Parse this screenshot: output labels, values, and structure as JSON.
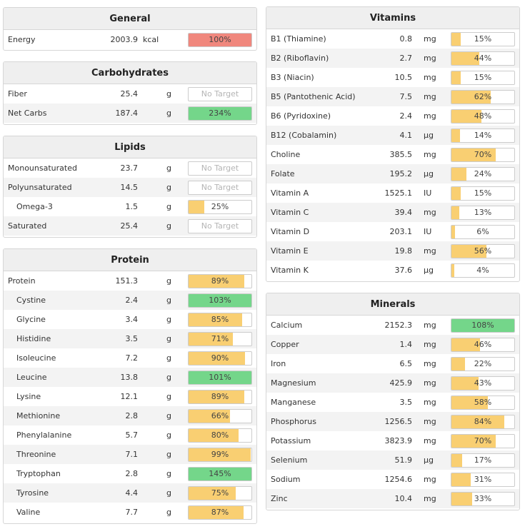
{
  "colors": {
    "orange": "#f9cf72",
    "green": "#74d68a",
    "red": "#f0877d"
  },
  "general": {
    "title": "General",
    "rows": [
      {
        "name": "Energy",
        "amount": "2003.9",
        "unit": "kcal",
        "percent": "100%",
        "pct": 100,
        "color": "#f0877d"
      }
    ]
  },
  "carbs": {
    "title": "Carbohydrates",
    "rows": [
      {
        "name": "Fiber",
        "amount": "25.4",
        "unit": "g",
        "percent": "No Target",
        "pct": 0,
        "color": ""
      },
      {
        "name": "Net Carbs",
        "amount": "187.4",
        "unit": "g",
        "percent": "234%",
        "pct": 100,
        "color": "#74d68a"
      }
    ]
  },
  "lipids": {
    "title": "Lipids",
    "rows": [
      {
        "name": "Monounsaturated",
        "amount": "23.7",
        "unit": "g",
        "percent": "No Target",
        "pct": 0,
        "color": ""
      },
      {
        "name": "Polyunsaturated",
        "amount": "14.5",
        "unit": "g",
        "percent": "No Target",
        "pct": 0,
        "color": ""
      },
      {
        "name": "Omega-3",
        "amount": "1.5",
        "unit": "g",
        "percent": "25%",
        "pct": 25,
        "color": "#f9cf72",
        "sub": true
      },
      {
        "name": "Saturated",
        "amount": "25.4",
        "unit": "g",
        "percent": "No Target",
        "pct": 0,
        "color": ""
      }
    ]
  },
  "protein": {
    "title": "Protein",
    "rows": [
      {
        "name": "Protein",
        "amount": "151.3",
        "unit": "g",
        "percent": "89%",
        "pct": 89,
        "color": "#f9cf72"
      },
      {
        "name": "Cystine",
        "amount": "2.4",
        "unit": "g",
        "percent": "103%",
        "pct": 100,
        "color": "#74d68a",
        "sub": true
      },
      {
        "name": "Glycine",
        "amount": "3.4",
        "unit": "g",
        "percent": "85%",
        "pct": 85,
        "color": "#f9cf72",
        "sub": true
      },
      {
        "name": "Histidine",
        "amount": "3.5",
        "unit": "g",
        "percent": "71%",
        "pct": 71,
        "color": "#f9cf72",
        "sub": true
      },
      {
        "name": "Isoleucine",
        "amount": "7.2",
        "unit": "g",
        "percent": "90%",
        "pct": 90,
        "color": "#f9cf72",
        "sub": true
      },
      {
        "name": "Leucine",
        "amount": "13.8",
        "unit": "g",
        "percent": "101%",
        "pct": 100,
        "color": "#74d68a",
        "sub": true
      },
      {
        "name": "Lysine",
        "amount": "12.1",
        "unit": "g",
        "percent": "89%",
        "pct": 89,
        "color": "#f9cf72",
        "sub": true
      },
      {
        "name": "Methionine",
        "amount": "2.8",
        "unit": "g",
        "percent": "66%",
        "pct": 66,
        "color": "#f9cf72",
        "sub": true
      },
      {
        "name": "Phenylalanine",
        "amount": "5.7",
        "unit": "g",
        "percent": "80%",
        "pct": 80,
        "color": "#f9cf72",
        "sub": true
      },
      {
        "name": "Threonine",
        "amount": "7.1",
        "unit": "g",
        "percent": "99%",
        "pct": 99,
        "color": "#f9cf72",
        "sub": true
      },
      {
        "name": "Tryptophan",
        "amount": "2.8",
        "unit": "g",
        "percent": "145%",
        "pct": 100,
        "color": "#74d68a",
        "sub": true
      },
      {
        "name": "Tyrosine",
        "amount": "4.4",
        "unit": "g",
        "percent": "75%",
        "pct": 75,
        "color": "#f9cf72",
        "sub": true
      },
      {
        "name": "Valine",
        "amount": "7.7",
        "unit": "g",
        "percent": "87%",
        "pct": 87,
        "color": "#f9cf72",
        "sub": true
      }
    ]
  },
  "vitamins": {
    "title": "Vitamins",
    "rows": [
      {
        "name": "B1 (Thiamine)",
        "amount": "0.8",
        "unit": "mg",
        "percent": "15%",
        "pct": 15,
        "color": "#f9cf72"
      },
      {
        "name": "B2 (Riboflavin)",
        "amount": "2.7",
        "unit": "mg",
        "percent": "44%",
        "pct": 44,
        "color": "#f9cf72"
      },
      {
        "name": "B3 (Niacin)",
        "amount": "10.5",
        "unit": "mg",
        "percent": "15%",
        "pct": 15,
        "color": "#f9cf72"
      },
      {
        "name": "B5 (Pantothenic Acid)",
        "amount": "7.5",
        "unit": "mg",
        "percent": "62%",
        "pct": 62,
        "color": "#f9cf72"
      },
      {
        "name": "B6 (Pyridoxine)",
        "amount": "2.4",
        "unit": "mg",
        "percent": "48%",
        "pct": 48,
        "color": "#f9cf72"
      },
      {
        "name": "B12 (Cobalamin)",
        "amount": "4.1",
        "unit": "µg",
        "percent": "14%",
        "pct": 14,
        "color": "#f9cf72"
      },
      {
        "name": "Choline",
        "amount": "385.5",
        "unit": "mg",
        "percent": "70%",
        "pct": 70,
        "color": "#f9cf72"
      },
      {
        "name": "Folate",
        "amount": "195.2",
        "unit": "µg",
        "percent": "24%",
        "pct": 24,
        "color": "#f9cf72"
      },
      {
        "name": "Vitamin A",
        "amount": "1525.1",
        "unit": "IU",
        "percent": "15%",
        "pct": 15,
        "color": "#f9cf72"
      },
      {
        "name": "Vitamin C",
        "amount": "39.4",
        "unit": "mg",
        "percent": "13%",
        "pct": 13,
        "color": "#f9cf72"
      },
      {
        "name": "Vitamin D",
        "amount": "203.1",
        "unit": "IU",
        "percent": "6%",
        "pct": 6,
        "color": "#f9cf72"
      },
      {
        "name": "Vitamin E",
        "amount": "19.8",
        "unit": "mg",
        "percent": "56%",
        "pct": 56,
        "color": "#f9cf72"
      },
      {
        "name": "Vitamin K",
        "amount": "37.6",
        "unit": "µg",
        "percent": "4%",
        "pct": 4,
        "color": "#f9cf72"
      }
    ]
  },
  "minerals": {
    "title": "Minerals",
    "rows": [
      {
        "name": "Calcium",
        "amount": "2152.3",
        "unit": "mg",
        "percent": "108%",
        "pct": 100,
        "color": "#74d68a"
      },
      {
        "name": "Copper",
        "amount": "1.4",
        "unit": "mg",
        "percent": "46%",
        "pct": 46,
        "color": "#f9cf72"
      },
      {
        "name": "Iron",
        "amount": "6.5",
        "unit": "mg",
        "percent": "22%",
        "pct": 22,
        "color": "#f9cf72"
      },
      {
        "name": "Magnesium",
        "amount": "425.9",
        "unit": "mg",
        "percent": "43%",
        "pct": 43,
        "color": "#f9cf72"
      },
      {
        "name": "Manganese",
        "amount": "3.5",
        "unit": "mg",
        "percent": "58%",
        "pct": 58,
        "color": "#f9cf72"
      },
      {
        "name": "Phosphorus",
        "amount": "1256.5",
        "unit": "mg",
        "percent": "84%",
        "pct": 84,
        "color": "#f9cf72"
      },
      {
        "name": "Potassium",
        "amount": "3823.9",
        "unit": "mg",
        "percent": "70%",
        "pct": 70,
        "color": "#f9cf72"
      },
      {
        "name": "Selenium",
        "amount": "51.9",
        "unit": "µg",
        "percent": "17%",
        "pct": 17,
        "color": "#f9cf72"
      },
      {
        "name": "Sodium",
        "amount": "1254.6",
        "unit": "mg",
        "percent": "31%",
        "pct": 31,
        "color": "#f9cf72"
      },
      {
        "name": "Zinc",
        "amount": "10.4",
        "unit": "mg",
        "percent": "33%",
        "pct": 33,
        "color": "#f9cf72"
      }
    ]
  }
}
